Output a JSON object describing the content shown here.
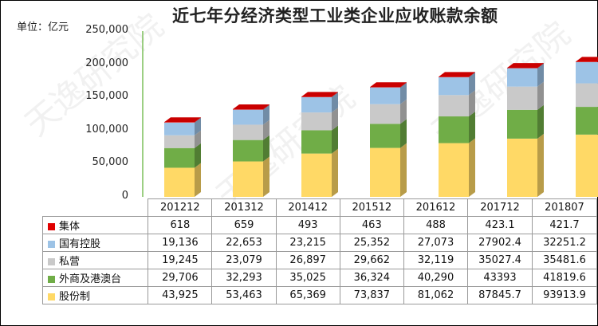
{
  "chart_data": {
    "type": "bar",
    "title": "近七年分经济类型工业类企业应收账款余额",
    "unit_label": "单位：亿元",
    "categories": [
      "201212",
      "201312",
      "201412",
      "201512",
      "201612",
      "201712",
      "201807"
    ],
    "ylim": [
      0,
      250000
    ],
    "yticks": [
      "0",
      "50,000",
      "100,000",
      "150,000",
      "200,000",
      "250,000"
    ],
    "series": [
      {
        "name": "股份制",
        "color": "#ffd966",
        "values": [
          43925,
          53463,
          65369,
          73837,
          81062,
          87845.7,
          93913.9
        ],
        "labels": [
          "43,925",
          "53,463",
          "65,369",
          "73,837",
          "81,062",
          "87845.7",
          "93913.9"
        ]
      },
      {
        "name": "外商及港澳台",
        "color": "#70ad47",
        "values": [
          29706,
          32293,
          35025,
          36324,
          40290,
          43393,
          41819.6
        ],
        "labels": [
          "29,706",
          "32,293",
          "35,025",
          "36,324",
          "40,290",
          "43393",
          "41819.6"
        ]
      },
      {
        "name": "私营",
        "color": "#c9c9c9",
        "values": [
          19245,
          23079,
          26897,
          29662,
          32119,
          35027.4,
          35481.6
        ],
        "labels": [
          "19,245",
          "23,079",
          "26,897",
          "29,662",
          "32,119",
          "35027.4",
          "35481.6"
        ]
      },
      {
        "name": "国有控股",
        "color": "#9dc3e6",
        "values": [
          19136,
          22653,
          23215,
          25352,
          27073,
          27902.4,
          32251.2
        ],
        "labels": [
          "19,136",
          "22,653",
          "23,215",
          "25,352",
          "27,073",
          "27902.4",
          "32251.2"
        ]
      },
      {
        "name": "集体",
        "color": "#e00000",
        "values": [
          618,
          659,
          493,
          463,
          488,
          423.1,
          421.7
        ],
        "labels": [
          "618",
          "659",
          "493",
          "463",
          "488",
          "423.1",
          "421.7"
        ]
      }
    ],
    "legend": "data-table-below"
  }
}
